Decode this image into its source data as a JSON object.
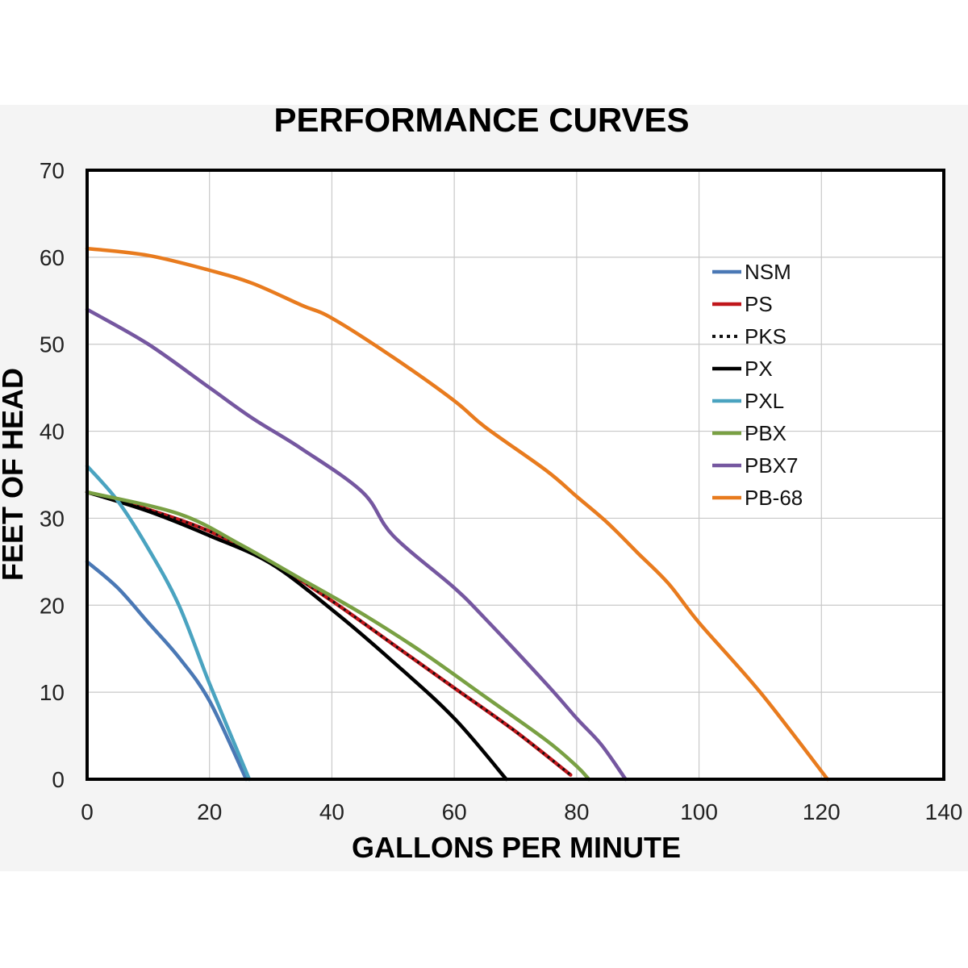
{
  "chart_data": {
    "type": "line",
    "title": "PERFORMANCE CURVES",
    "xlabel": "GALLONS PER MINUTE",
    "ylabel": "FEET OF HEAD",
    "xlim": [
      0,
      140
    ],
    "ylim": [
      0,
      70
    ],
    "xticks": [
      "0",
      "20",
      "40",
      "60",
      "80",
      "100",
      "120",
      "140"
    ],
    "yticks": [
      "0",
      "10",
      "20",
      "30",
      "40",
      "50",
      "60",
      "70"
    ],
    "grid": true,
    "legend_position": "top-right",
    "series": [
      {
        "name": "NSM",
        "color": "#4a78b5",
        "dashed": false,
        "points": [
          [
            0,
            25
          ],
          [
            5,
            22
          ],
          [
            10,
            18
          ],
          [
            15,
            14
          ],
          [
            20,
            9
          ],
          [
            26,
            0
          ]
        ]
      },
      {
        "name": "PS",
        "color": "#c0161b",
        "dashed": false,
        "points": [
          [
            0,
            33
          ],
          [
            10,
            31
          ],
          [
            20,
            28.5
          ],
          [
            30,
            25
          ],
          [
            40,
            20.5
          ],
          [
            50,
            15.5
          ],
          [
            60,
            10.5
          ],
          [
            70,
            5.5
          ],
          [
            79,
            0.5
          ]
        ]
      },
      {
        "name": "PKS",
        "color": "#111111",
        "dashed": true,
        "points": [
          [
            0,
            33
          ],
          [
            10,
            31
          ],
          [
            20,
            28.5
          ],
          [
            30,
            25
          ],
          [
            40,
            20.5
          ],
          [
            50,
            15.5
          ],
          [
            60,
            10.5
          ],
          [
            70,
            5.5
          ],
          [
            79,
            0.5
          ]
        ]
      },
      {
        "name": "PX",
        "color": "#000000",
        "dashed": false,
        "points": [
          [
            0,
            33
          ],
          [
            10,
            30.8
          ],
          [
            20,
            28
          ],
          [
            30,
            24.8
          ],
          [
            40,
            19.5
          ],
          [
            50,
            13.5
          ],
          [
            60,
            7
          ],
          [
            68.5,
            0
          ]
        ]
      },
      {
        "name": "PXL",
        "color": "#4aa3c0",
        "dashed": false,
        "points": [
          [
            0,
            36
          ],
          [
            5,
            32
          ],
          [
            10,
            26.5
          ],
          [
            15,
            20
          ],
          [
            20,
            11
          ],
          [
            26.5,
            0
          ]
        ]
      },
      {
        "name": "PBX",
        "color": "#79a043",
        "dashed": false,
        "points": [
          [
            0,
            33
          ],
          [
            15,
            30.5
          ],
          [
            25,
            27
          ],
          [
            35,
            23
          ],
          [
            45,
            19
          ],
          [
            55,
            14.5
          ],
          [
            65,
            9.5
          ],
          [
            75,
            4.5
          ],
          [
            80,
            1.5
          ],
          [
            82,
            0
          ]
        ]
      },
      {
        "name": "PBX7",
        "color": "#7557a0",
        "dashed": false,
        "points": [
          [
            0,
            54
          ],
          [
            10,
            50
          ],
          [
            20,
            45
          ],
          [
            27,
            41.5
          ],
          [
            35,
            38
          ],
          [
            45,
            33
          ],
          [
            50,
            28
          ],
          [
            60,
            22
          ],
          [
            65,
            18.5
          ],
          [
            75,
            11
          ],
          [
            80,
            7
          ],
          [
            84,
            4
          ],
          [
            88,
            0
          ]
        ]
      },
      {
        "name": "PB-68",
        "color": "#e87b1e",
        "dashed": false,
        "points": [
          [
            0,
            61
          ],
          [
            10,
            60.2
          ],
          [
            20,
            58.5
          ],
          [
            27,
            57
          ],
          [
            35,
            54.5
          ],
          [
            40,
            53
          ],
          [
            50,
            48.5
          ],
          [
            60,
            43.5
          ],
          [
            65,
            40.5
          ],
          [
            75,
            35.5
          ],
          [
            80,
            32.5
          ],
          [
            85,
            29.5
          ],
          [
            90,
            26
          ],
          [
            95,
            22.5
          ],
          [
            100,
            18
          ],
          [
            110,
            10
          ],
          [
            121,
            0
          ]
        ]
      }
    ]
  }
}
